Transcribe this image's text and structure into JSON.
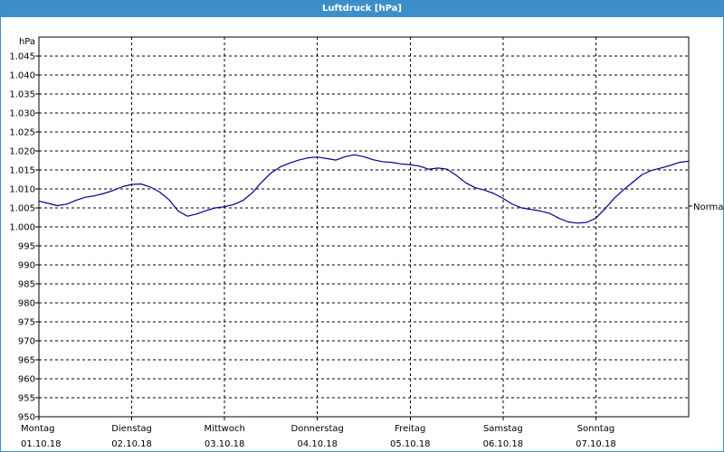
{
  "window": {
    "title": "Luftdruck [hPa]"
  },
  "chart_data": {
    "type": "line",
    "title": "Luftdruck [hPa]",
    "ylabel": "hPa",
    "xlabel": "",
    "ylim": [
      950,
      1050
    ],
    "yticks": [
      950,
      955,
      960,
      965,
      970,
      975,
      980,
      985,
      990,
      995,
      1000,
      1005,
      1010,
      1015,
      1020,
      1025,
      1030,
      1035,
      1040,
      1045
    ],
    "ytick_labels": [
      "950",
      "955",
      "960",
      "965",
      "970",
      "975",
      "980",
      "985",
      "990",
      "995",
      "1.000",
      "1.005",
      "1.010",
      "1.015",
      "1.020",
      "1.025",
      "1.030",
      "1.035",
      "1.040",
      "1.045"
    ],
    "x_range_days": [
      0,
      7
    ],
    "xticks": [
      {
        "day": 0,
        "weekday": "Montag",
        "date": "01.10.18"
      },
      {
        "day": 1,
        "weekday": "Dienstag",
        "date": "02.10.18"
      },
      {
        "day": 2,
        "weekday": "Mittwoch",
        "date": "03.10.18"
      },
      {
        "day": 3,
        "weekday": "Donnerstag",
        "date": "04.10.18"
      },
      {
        "day": 4,
        "weekday": "Freitag",
        "date": "05.10.18"
      },
      {
        "day": 5,
        "weekday": "Samstag",
        "date": "06.10.18"
      },
      {
        "day": 6,
        "weekday": "Sonntag",
        "date": "07.10.18"
      }
    ],
    "reference_line": {
      "label": "Normal",
      "value": 1005.5
    },
    "grid": true,
    "series": [
      {
        "color": "#00008b",
        "x": [
          0.0,
          0.1,
          0.2,
          0.3,
          0.4,
          0.5,
          0.6,
          0.7,
          0.8,
          0.9,
          1.0,
          1.1,
          1.2,
          1.3,
          1.4,
          1.5,
          1.6,
          1.7,
          1.8,
          1.9,
          2.0,
          2.1,
          2.2,
          2.3,
          2.4,
          2.5,
          2.6,
          2.7,
          2.8,
          2.9,
          3.0,
          3.1,
          3.2,
          3.3,
          3.4,
          3.5,
          3.6,
          3.7,
          3.8,
          3.9,
          4.0,
          4.1,
          4.2,
          4.3,
          4.4,
          4.5,
          4.6,
          4.7,
          4.8,
          4.9,
          5.0,
          5.1,
          5.2,
          5.3,
          5.4,
          5.5,
          5.6,
          5.7,
          5.8,
          5.9,
          6.0,
          6.1,
          6.2,
          6.3,
          6.4,
          6.5,
          6.6,
          6.7,
          6.8,
          6.9,
          7.0
        ],
        "y": [
          1006.8,
          1006.2,
          1005.6,
          1006.0,
          1007.0,
          1007.8,
          1008.2,
          1008.8,
          1009.6,
          1010.6,
          1011.2,
          1011.3,
          1010.5,
          1009.2,
          1007.2,
          1004.2,
          1002.8,
          1003.4,
          1004.3,
          1005.0,
          1005.3,
          1005.9,
          1007.0,
          1009.0,
          1011.8,
          1014.2,
          1015.8,
          1016.8,
          1017.6,
          1018.2,
          1018.4,
          1018.0,
          1017.6,
          1018.5,
          1019.0,
          1018.5,
          1017.7,
          1017.2,
          1017.0,
          1016.6,
          1016.4,
          1016.0,
          1015.2,
          1015.5,
          1015.2,
          1013.5,
          1011.6,
          1010.3,
          1009.7,
          1008.8,
          1007.5,
          1006.0,
          1005.0,
          1004.6,
          1004.2,
          1003.6,
          1002.3,
          1001.3,
          1001.0,
          1001.2,
          1002.3,
          1004.8,
          1007.6,
          1009.8,
          1011.8,
          1013.8,
          1014.9,
          1015.5,
          1016.2,
          1017.0,
          1017.3
        ]
      }
    ]
  }
}
